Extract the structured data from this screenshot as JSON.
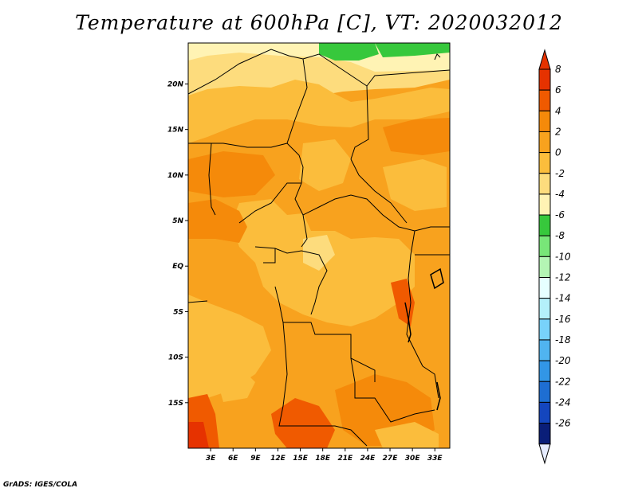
{
  "title": "Temperature at 600hPa [C], VT: 2020032012",
  "credit": "GrADS: IGES/COLA",
  "map": {
    "lon_range": [
      0,
      35
    ],
    "lat_range": [
      -20,
      24.5
    ],
    "lat_ticks": [
      {
        "value": 20,
        "label": "20N"
      },
      {
        "value": 15,
        "label": "15N"
      },
      {
        "value": 10,
        "label": "10N"
      },
      {
        "value": 5,
        "label": "5N"
      },
      {
        "value": 0,
        "label": "EQ"
      },
      {
        "value": -5,
        "label": "5S"
      },
      {
        "value": -10,
        "label": "10S"
      },
      {
        "value": -15,
        "label": "15S"
      }
    ],
    "lon_ticks": [
      {
        "value": 3,
        "label": "3E"
      },
      {
        "value": 6,
        "label": "6E"
      },
      {
        "value": 9,
        "label": "9E"
      },
      {
        "value": 12,
        "label": "12E"
      },
      {
        "value": 15,
        "label": "15E"
      },
      {
        "value": 18,
        "label": "18E"
      },
      {
        "value": 21,
        "label": "21E"
      },
      {
        "value": 24,
        "label": "24E"
      },
      {
        "value": 27,
        "label": "27E"
      },
      {
        "value": 30,
        "label": "30E"
      },
      {
        "value": 33,
        "label": "33E"
      }
    ]
  },
  "colorbar": {
    "labels": [
      "8",
      "6",
      "4",
      "2",
      "0",
      "-2",
      "-4",
      "-6",
      "-8",
      "-10",
      "-12",
      "-14",
      "-16",
      "-18",
      "-20",
      "-22",
      "-24",
      "-26"
    ],
    "colors": [
      "#e63200",
      "#f05a00",
      "#f58a0a",
      "#f8a21e",
      "#fbbd3c",
      "#fddc7d",
      "#fff3b4",
      "#37c83c",
      "#78e678",
      "#b4f5b4",
      "#e6ffff",
      "#b4f0fa",
      "#78d2fa",
      "#50b4f0",
      "#3296e6",
      "#1e6ed2",
      "#1446be",
      "#0a1e78"
    ],
    "top_color": "#e63200",
    "bottom_color": "#e6ecff"
  }
}
